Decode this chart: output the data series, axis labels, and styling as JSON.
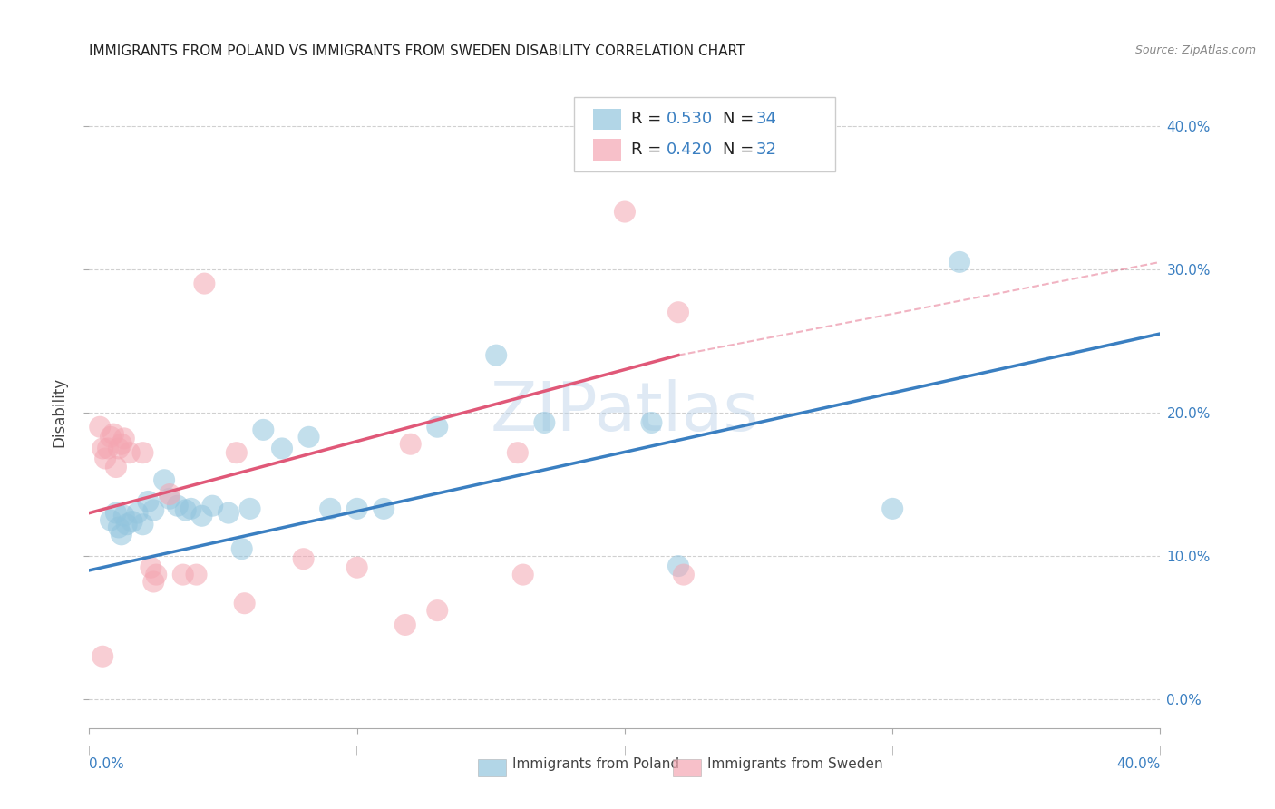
{
  "title": "IMMIGRANTS FROM POLAND VS IMMIGRANTS FROM SWEDEN DISABILITY CORRELATION CHART",
  "source": "Source: ZipAtlas.com",
  "ylabel": "Disability",
  "legend_blue_label": "Immigrants from Poland",
  "legend_pink_label": "Immigrants from Sweden",
  "xlim": [
    0.0,
    0.4
  ],
  "ylim": [
    -0.02,
    0.42
  ],
  "yticks": [
    0.0,
    0.1,
    0.2,
    0.3,
    0.4
  ],
  "xticks": [
    0.0,
    0.1,
    0.2,
    0.3,
    0.4
  ],
  "blue_color": "#92c5de",
  "pink_color": "#f4a6b2",
  "blue_line_color": "#3a7fc1",
  "pink_line_color": "#e05878",
  "background_color": "#ffffff",
  "text_color_blue": "#3a7fc1",
  "text_color_black": "#222222",
  "blue_scatter": [
    [
      0.008,
      0.125
    ],
    [
      0.01,
      0.13
    ],
    [
      0.011,
      0.12
    ],
    [
      0.012,
      0.115
    ],
    [
      0.013,
      0.128
    ],
    [
      0.014,
      0.122
    ],
    [
      0.016,
      0.124
    ],
    [
      0.018,
      0.13
    ],
    [
      0.02,
      0.122
    ],
    [
      0.022,
      0.138
    ],
    [
      0.024,
      0.132
    ],
    [
      0.028,
      0.153
    ],
    [
      0.03,
      0.14
    ],
    [
      0.033,
      0.135
    ],
    [
      0.036,
      0.132
    ],
    [
      0.038,
      0.133
    ],
    [
      0.042,
      0.128
    ],
    [
      0.046,
      0.135
    ],
    [
      0.052,
      0.13
    ],
    [
      0.057,
      0.105
    ],
    [
      0.06,
      0.133
    ],
    [
      0.065,
      0.188
    ],
    [
      0.072,
      0.175
    ],
    [
      0.082,
      0.183
    ],
    [
      0.09,
      0.133
    ],
    [
      0.1,
      0.133
    ],
    [
      0.11,
      0.133
    ],
    [
      0.13,
      0.19
    ],
    [
      0.152,
      0.24
    ],
    [
      0.17,
      0.193
    ],
    [
      0.21,
      0.193
    ],
    [
      0.22,
      0.093
    ],
    [
      0.3,
      0.133
    ],
    [
      0.325,
      0.305
    ]
  ],
  "pink_scatter": [
    [
      0.004,
      0.19
    ],
    [
      0.005,
      0.175
    ],
    [
      0.006,
      0.168
    ],
    [
      0.007,
      0.175
    ],
    [
      0.008,
      0.183
    ],
    [
      0.009,
      0.185
    ],
    [
      0.01,
      0.162
    ],
    [
      0.011,
      0.175
    ],
    [
      0.012,
      0.178
    ],
    [
      0.013,
      0.182
    ],
    [
      0.015,
      0.172
    ],
    [
      0.02,
      0.172
    ],
    [
      0.023,
      0.092
    ],
    [
      0.025,
      0.087
    ],
    [
      0.03,
      0.143
    ],
    [
      0.04,
      0.087
    ],
    [
      0.043,
      0.29
    ],
    [
      0.055,
      0.172
    ],
    [
      0.058,
      0.067
    ],
    [
      0.08,
      0.098
    ],
    [
      0.1,
      0.092
    ],
    [
      0.12,
      0.178
    ],
    [
      0.16,
      0.172
    ],
    [
      0.2,
      0.34
    ],
    [
      0.22,
      0.27
    ],
    [
      0.162,
      0.087
    ],
    [
      0.222,
      0.087
    ],
    [
      0.024,
      0.082
    ],
    [
      0.035,
      0.087
    ],
    [
      0.118,
      0.052
    ],
    [
      0.13,
      0.062
    ],
    [
      0.005,
      0.03
    ]
  ],
  "blue_line_x": [
    0.0,
    0.4
  ],
  "blue_line_y": [
    0.09,
    0.255
  ],
  "pink_line_x": [
    0.0,
    0.22
  ],
  "pink_line_y": [
    0.13,
    0.24
  ],
  "dashed_line_x": [
    0.22,
    0.4
  ],
  "dashed_line_y": [
    0.24,
    0.305
  ],
  "watermark": "ZIPatlas"
}
